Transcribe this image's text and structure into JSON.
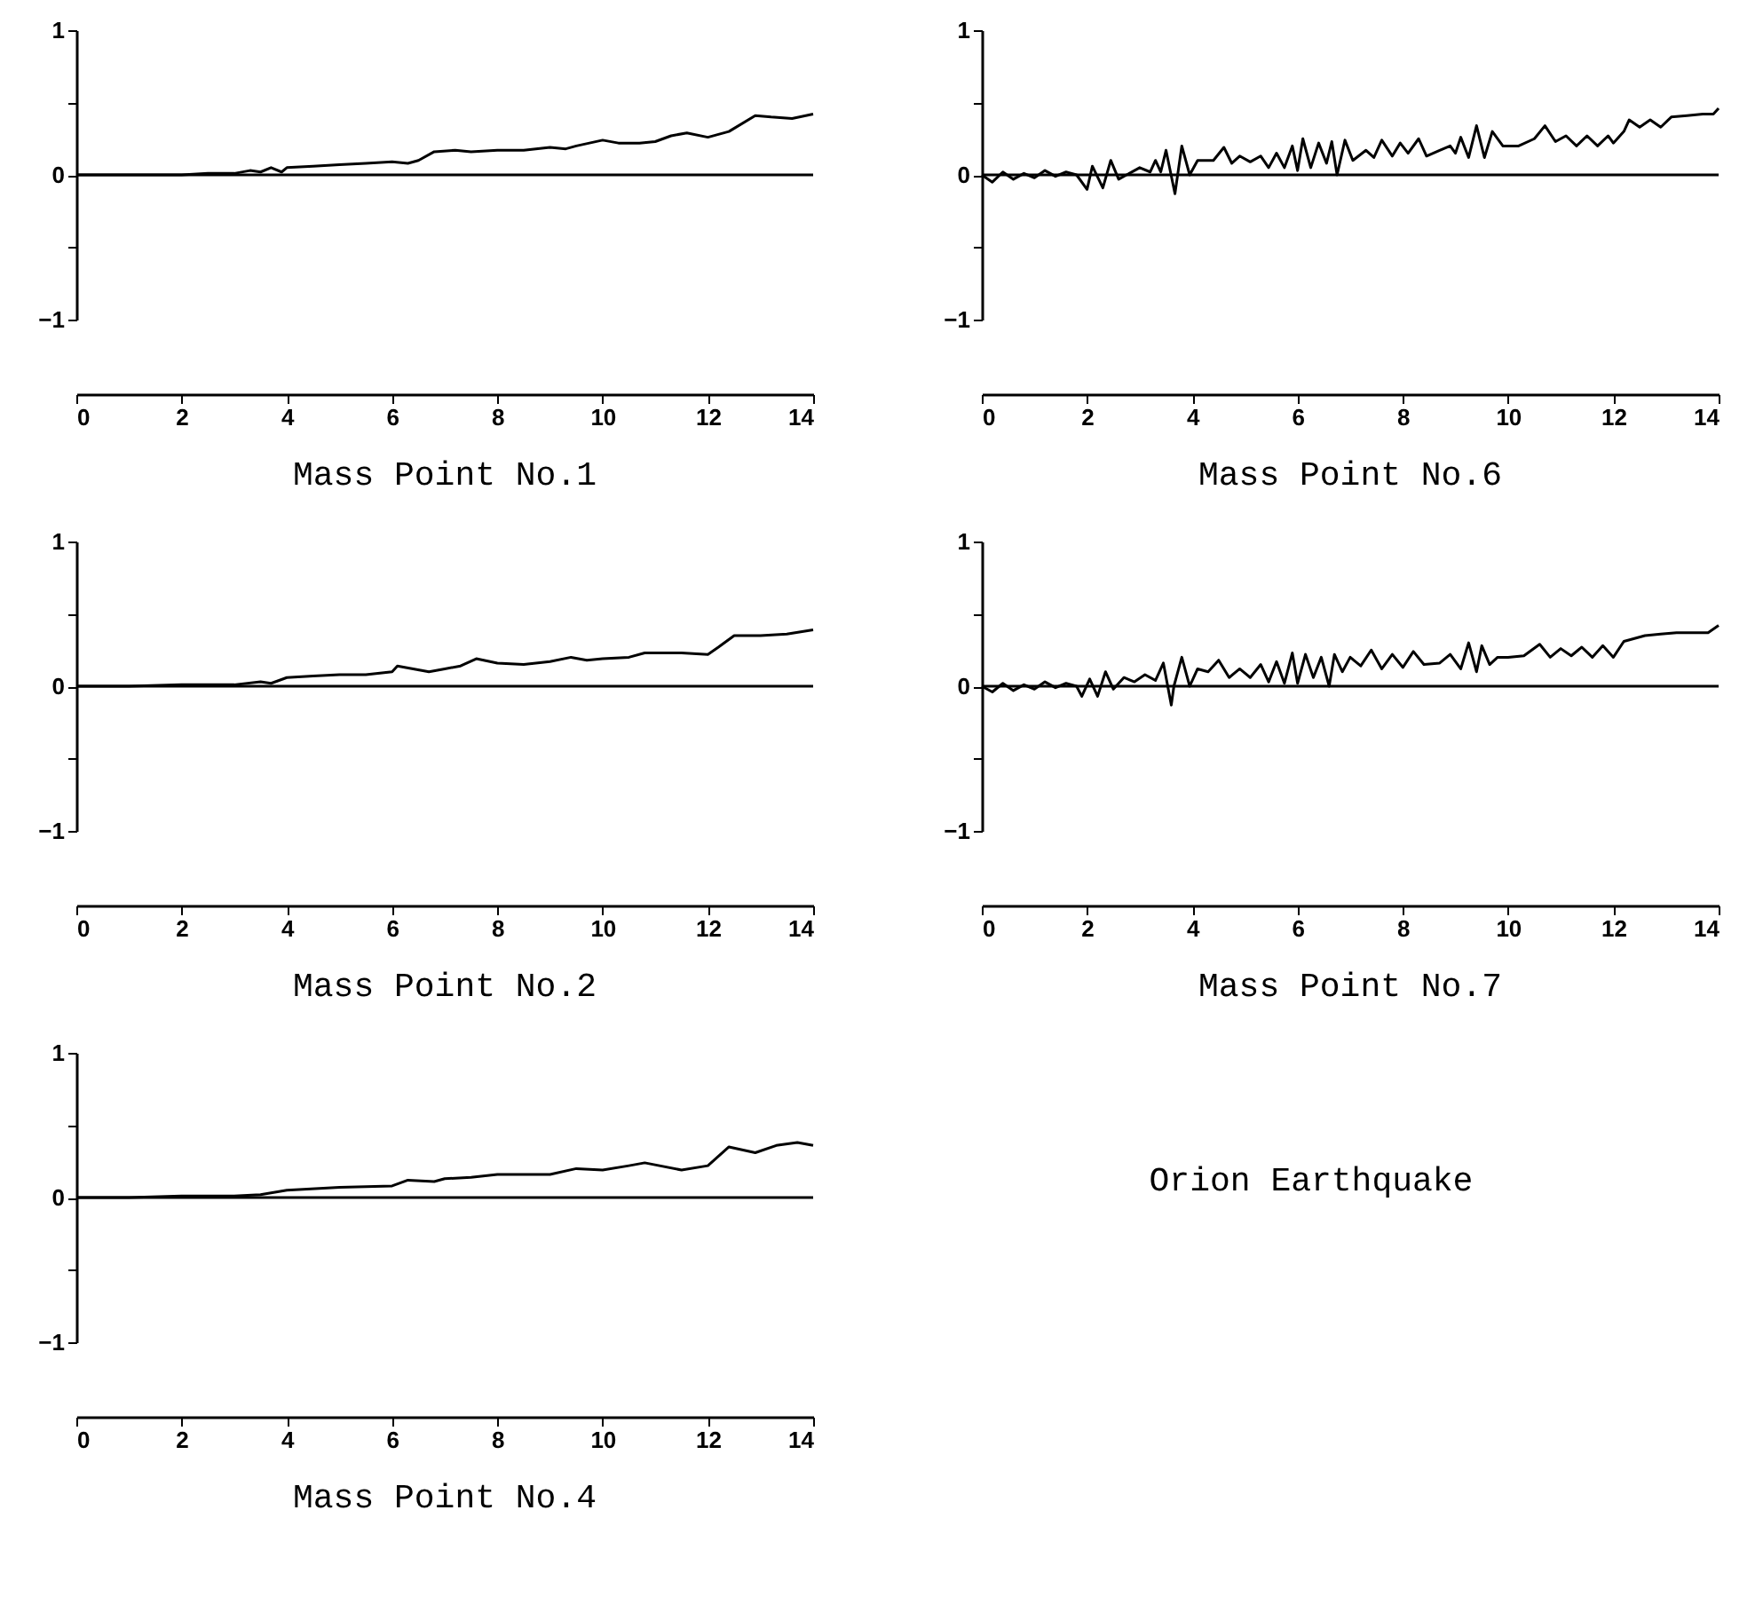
{
  "chart_data": [
    {
      "type": "line",
      "title": "Mass Point No.1",
      "xlim": [
        0,
        14
      ],
      "xticks": [
        0,
        2,
        4,
        6,
        8,
        10,
        12,
        14
      ],
      "ylim": [
        -1,
        1
      ],
      "yticks": [
        {
          "value": -1,
          "label": "−1"
        },
        {
          "value": -0.5,
          "label": null
        },
        0,
        {
          "value": 0.5,
          "label": null
        },
        1
      ],
      "ref_lines": [
        {
          "axis": "y",
          "value": 0,
          "color": "#000000"
        }
      ],
      "x": [
        0,
        1,
        2,
        2.5,
        3,
        3.3,
        3.5,
        3.7,
        3.9,
        4,
        4.5,
        5,
        5.5,
        6,
        6.3,
        6.5,
        6.8,
        7.2,
        7.5,
        8,
        8.5,
        9,
        9.3,
        9.5,
        10,
        10.3,
        10.7,
        11,
        11.3,
        11.6,
        12,
        12.4,
        12.9,
        13.2,
        13.6,
        14
      ],
      "series": [
        {
          "color": "#000000",
          "values": [
            0,
            0,
            0,
            0.01,
            0.01,
            0.03,
            0.02,
            0.05,
            0.02,
            0.05,
            0.06,
            0.07,
            0.08,
            0.09,
            0.08,
            0.1,
            0.16,
            0.17,
            0.16,
            0.17,
            0.17,
            0.19,
            0.18,
            0.2,
            0.24,
            0.22,
            0.22,
            0.23,
            0.27,
            0.29,
            0.26,
            0.3,
            0.41,
            0.4,
            0.39,
            0.42
          ]
        }
      ]
    },
    {
      "type": "line",
      "title": "Mass Point No.6",
      "xlim": [
        0,
        14
      ],
      "xticks": [
        0,
        2,
        4,
        6,
        8,
        10,
        12,
        14
      ],
      "ylim": [
        -1,
        1
      ],
      "yticks": [
        {
          "value": -1,
          "label": "−1"
        },
        {
          "value": -0.5,
          "label": null
        },
        0,
        {
          "value": 0.5,
          "label": null
        },
        1
      ],
      "ref_lines": [
        {
          "axis": "y",
          "value": 0,
          "color": "#000000"
        }
      ],
      "x": [
        0,
        0.2,
        0.4,
        0.6,
        0.8,
        1.0,
        1.2,
        1.4,
        1.6,
        1.8,
        2.0,
        2.1,
        2.3,
        2.45,
        2.6,
        3.0,
        3.2,
        3.3,
        3.4,
        3.5,
        3.67,
        3.8,
        3.95,
        4.1,
        4.4,
        4.6,
        4.75,
        4.9,
        5.1,
        5.3,
        5.45,
        5.6,
        5.75,
        5.9,
        6.0,
        6.1,
        6.25,
        6.4,
        6.55,
        6.65,
        6.75,
        6.9,
        7.05,
        7.3,
        7.45,
        7.6,
        7.8,
        7.95,
        8.1,
        8.3,
        8.45,
        8.7,
        8.9,
        9.0,
        9.1,
        9.25,
        9.4,
        9.55,
        9.7,
        9.9,
        10.2,
        10.5,
        10.7,
        10.9,
        11.1,
        11.3,
        11.5,
        11.7,
        11.9,
        12.0,
        12.2,
        12.3,
        12.5,
        12.7,
        12.9,
        13.1,
        13.4,
        13.7,
        13.9,
        14.0
      ],
      "series": [
        {
          "color": "#000000",
          "values": [
            0,
            -0.05,
            0.02,
            -0.03,
            0.01,
            -0.02,
            0.03,
            -0.01,
            0.02,
            0,
            -0.1,
            0.06,
            -0.09,
            0.1,
            -0.03,
            0.05,
            0.02,
            0.1,
            0.02,
            0.17,
            -0.13,
            0.2,
            0.0,
            0.1,
            0.1,
            0.19,
            0.08,
            0.13,
            0.09,
            0.13,
            0.05,
            0.15,
            0.05,
            0.2,
            0.03,
            0.25,
            0.05,
            0.22,
            0.08,
            0.23,
            0.0,
            0.24,
            0.1,
            0.17,
            0.12,
            0.24,
            0.13,
            0.22,
            0.15,
            0.25,
            0.13,
            0.17,
            0.2,
            0.15,
            0.26,
            0.12,
            0.34,
            0.12,
            0.3,
            0.2,
            0.2,
            0.25,
            0.34,
            0.23,
            0.27,
            0.2,
            0.27,
            0.2,
            0.27,
            0.22,
            0.3,
            0.38,
            0.33,
            0.38,
            0.33,
            0.4,
            0.41,
            0.42,
            0.42,
            0.46
          ]
        }
      ]
    },
    {
      "type": "line",
      "title": "Mass Point No.2",
      "xlim": [
        0,
        14
      ],
      "xticks": [
        0,
        2,
        4,
        6,
        8,
        10,
        12,
        14
      ],
      "ylim": [
        -1,
        1
      ],
      "yticks": [
        {
          "value": -1,
          "label": "−1"
        },
        {
          "value": -0.5,
          "label": null
        },
        0,
        {
          "value": 0.5,
          "label": null
        },
        1
      ],
      "ref_lines": [
        {
          "axis": "y",
          "value": 0,
          "color": "#000000"
        }
      ],
      "x": [
        0,
        1,
        2,
        3,
        3.5,
        3.7,
        4,
        4.5,
        5,
        5.5,
        6,
        6.1,
        6.4,
        6.7,
        7,
        7.3,
        7.6,
        8,
        8.5,
        9,
        9.4,
        9.7,
        10,
        10.5,
        10.8,
        11.5,
        12,
        12.2,
        12.5,
        13,
        13.5,
        14
      ],
      "series": [
        {
          "color": "#000000",
          "values": [
            0,
            0,
            0.01,
            0.01,
            0.03,
            0.02,
            0.06,
            0.07,
            0.08,
            0.08,
            0.1,
            0.14,
            0.12,
            0.1,
            0.12,
            0.14,
            0.19,
            0.16,
            0.15,
            0.17,
            0.2,
            0.18,
            0.19,
            0.2,
            0.23,
            0.23,
            0.22,
            0.27,
            0.35,
            0.35,
            0.36,
            0.39
          ]
        }
      ]
    },
    {
      "type": "line",
      "title": "Mass Point No.7",
      "xlim": [
        0,
        14
      ],
      "xticks": [
        0,
        2,
        4,
        6,
        8,
        10,
        12,
        14
      ],
      "ylim": [
        -1,
        1
      ],
      "yticks": [
        {
          "value": -1,
          "label": "−1"
        },
        {
          "value": -0.5,
          "label": null
        },
        0,
        {
          "value": 0.5,
          "label": null
        },
        1
      ],
      "ref_lines": [
        {
          "axis": "y",
          "value": 0,
          "color": "#000000"
        }
      ],
      "x": [
        0,
        0.2,
        0.4,
        0.6,
        0.8,
        1.0,
        1.2,
        1.4,
        1.6,
        1.8,
        1.9,
        2.05,
        2.2,
        2.35,
        2.5,
        2.7,
        2.9,
        3.1,
        3.3,
        3.45,
        3.6,
        3.65,
        3.8,
        3.95,
        4.1,
        4.3,
        4.5,
        4.7,
        4.9,
        5.1,
        5.3,
        5.45,
        5.6,
        5.75,
        5.9,
        6.0,
        6.15,
        6.3,
        6.45,
        6.6,
        6.7,
        6.85,
        7.0,
        7.2,
        7.4,
        7.6,
        7.8,
        8.0,
        8.2,
        8.4,
        8.7,
        8.9,
        9.1,
        9.25,
        9.4,
        9.5,
        9.65,
        9.8,
        10.0,
        10.3,
        10.6,
        10.8,
        11.0,
        11.2,
        11.4,
        11.6,
        11.8,
        12.0,
        12.2,
        12.4,
        12.6,
        12.9,
        13.2,
        13.5,
        13.8,
        14.0
      ],
      "series": [
        {
          "color": "#000000",
          "values": [
            0,
            -0.04,
            0.02,
            -0.03,
            0.01,
            -0.02,
            0.03,
            -0.01,
            0.02,
            0,
            -0.07,
            0.05,
            -0.07,
            0.1,
            -0.02,
            0.06,
            0.03,
            0.08,
            0.04,
            0.16,
            -0.13,
            0.0,
            0.2,
            0.0,
            0.12,
            0.1,
            0.18,
            0.06,
            0.12,
            0.06,
            0.15,
            0.03,
            0.17,
            0.02,
            0.23,
            0.02,
            0.22,
            0.06,
            0.2,
            0.0,
            0.22,
            0.1,
            0.2,
            0.14,
            0.25,
            0.12,
            0.22,
            0.13,
            0.24,
            0.15,
            0.16,
            0.22,
            0.12,
            0.3,
            0.1,
            0.28,
            0.15,
            0.2,
            0.2,
            0.21,
            0.29,
            0.2,
            0.26,
            0.21,
            0.27,
            0.2,
            0.28,
            0.2,
            0.31,
            0.33,
            0.35,
            0.36,
            0.37,
            0.37,
            0.37,
            0.42
          ]
        }
      ]
    },
    {
      "type": "line",
      "title": "Mass Point No.4",
      "xlim": [
        0,
        14
      ],
      "xticks": [
        0,
        2,
        4,
        6,
        8,
        10,
        12,
        14
      ],
      "ylim": [
        -1,
        1
      ],
      "yticks": [
        {
          "value": -1,
          "label": "−1"
        },
        {
          "value": -0.5,
          "label": null
        },
        0,
        {
          "value": 0.5,
          "label": null
        },
        1
      ],
      "ref_lines": [
        {
          "axis": "y",
          "value": 0,
          "color": "#000000"
        }
      ],
      "x": [
        0,
        1,
        2,
        3,
        3.5,
        4,
        5,
        6,
        6.3,
        6.8,
        7,
        7.5,
        8,
        8.5,
        9,
        9.5,
        10,
        10.5,
        10.8,
        11.5,
        12,
        12.4,
        12.9,
        13.3,
        13.7,
        14
      ],
      "series": [
        {
          "color": "#000000",
          "values": [
            0,
            0,
            0.01,
            0.01,
            0.02,
            0.05,
            0.07,
            0.08,
            0.12,
            0.11,
            0.13,
            0.14,
            0.16,
            0.16,
            0.16,
            0.2,
            0.19,
            0.22,
            0.24,
            0.19,
            0.22,
            0.35,
            0.31,
            0.36,
            0.38,
            0.36
          ]
        }
      ]
    },
    {
      "type": "other",
      "annotations": [
        "Orion Earthquake"
      ]
    }
  ]
}
